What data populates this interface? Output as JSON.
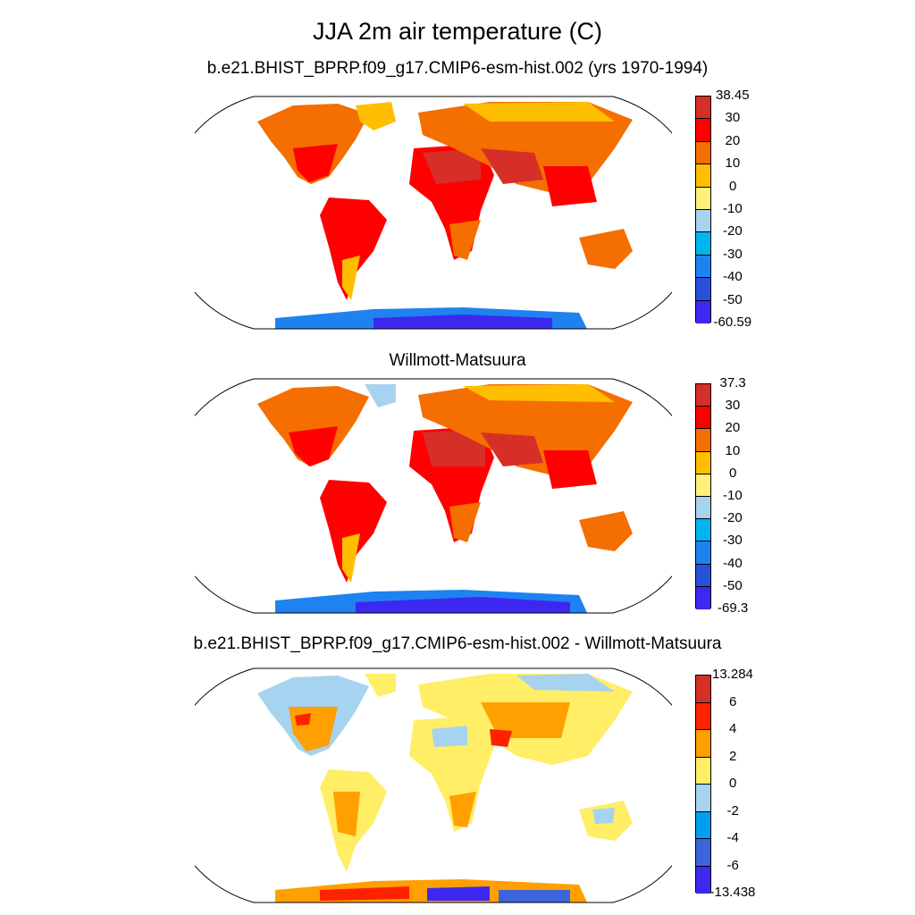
{
  "title": "JJA 2m air temperature (C)",
  "panels": [
    {
      "subtitle": "b.e21.BHIST_BPRP.f09_g17.CMIP6-esm-hist.002 (yrs 1970-1994)",
      "colorbar": {
        "labels": [
          "38.45",
          "30",
          "20",
          "10",
          "0",
          "-10",
          "-20",
          "-30",
          "-40",
          "-50",
          "-60.59"
        ],
        "colors": [
          "#d62f27",
          "#ff0000",
          "#f56e00",
          "#ffbf00",
          "#fff07a",
          "#a6d3f0",
          "#00b4f0",
          "#1e82f0",
          "#2850dc",
          "#3c28f0"
        ]
      }
    },
    {
      "subtitle": "Willmott-Matsuura",
      "colorbar": {
        "labels": [
          "37.3",
          "30",
          "20",
          "10",
          "0",
          "-10",
          "-20",
          "-30",
          "-40",
          "-50",
          "-69.3"
        ],
        "colors": [
          "#d62f27",
          "#ff0000",
          "#f56e00",
          "#ffbf00",
          "#fff07a",
          "#a6d3f0",
          "#00b4f0",
          "#1e82f0",
          "#2850dc",
          "#3c28f0"
        ]
      }
    },
    {
      "subtitle": "b.e21.BHIST_BPRP.f09_g17.CMIP6-esm-hist.002 - Willmott-Matsuura",
      "colorbar": {
        "labels": [
          "13.284",
          "6",
          "4",
          "2",
          "0",
          "-2",
          "-4",
          "-6",
          "-13.438"
        ],
        "colors": [
          "#d62f27",
          "#ff2200",
          "#ff9f00",
          "#ffee66",
          "#a6d3f0",
          "#00a0f0",
          "#3c64dc",
          "#3c28f0"
        ]
      }
    }
  ]
}
